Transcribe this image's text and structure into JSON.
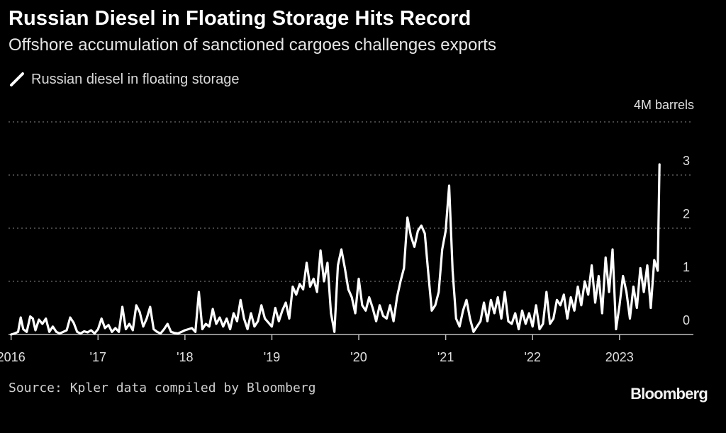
{
  "title": "Russian Diesel in Floating Storage Hits Record",
  "subtitle": "Offshore accumulation of sanctioned cargoes challenges exports",
  "legend": {
    "label": "Russian diesel in floating storage",
    "icon": "line-swatch-icon"
  },
  "source": "Source: Kpler data compiled by Bloomberg",
  "brand": "Bloomberg",
  "colors": {
    "background": "#000000",
    "line": "#ffffff",
    "grid": "#8a8a8a",
    "text": "#e0e0e0"
  },
  "chart_data": {
    "type": "line",
    "title": "Russian Diesel in Floating Storage Hits Record",
    "subtitle": "Offshore accumulation of sanctioned cargoes challenges exports",
    "unit_label": "4M barrels",
    "y_tick_labels": [
      "0",
      "1",
      "2",
      "3"
    ],
    "x_tick_labels": [
      "2016",
      "'17",
      "'18",
      "'19",
      "'20",
      "'21",
      "'22",
      "2023"
    ],
    "ylim": [
      0,
      4
    ],
    "xlim": [
      2015.97,
      2023.85
    ],
    "y_axis_position": "right",
    "grid": "horizontal dotted",
    "legend_position": "top-left",
    "series": [
      {
        "name": "Russian diesel in floating storage",
        "points": [
          [
            2016.0,
            0.0
          ],
          [
            2016.04,
            0.02
          ],
          [
            2016.08,
            0.05
          ],
          [
            2016.11,
            0.32
          ],
          [
            2016.14,
            0.1
          ],
          [
            2016.18,
            0.05
          ],
          [
            2016.22,
            0.34
          ],
          [
            2016.25,
            0.3
          ],
          [
            2016.28,
            0.08
          ],
          [
            2016.32,
            0.28
          ],
          [
            2016.36,
            0.2
          ],
          [
            2016.4,
            0.3
          ],
          [
            2016.44,
            0.05
          ],
          [
            2016.48,
            0.15
          ],
          [
            2016.52,
            0.05
          ],
          [
            2016.56,
            0.02
          ],
          [
            2016.6,
            0.05
          ],
          [
            2016.64,
            0.08
          ],
          [
            2016.68,
            0.32
          ],
          [
            2016.72,
            0.22
          ],
          [
            2016.76,
            0.05
          ],
          [
            2016.8,
            0.02
          ],
          [
            2016.84,
            0.06
          ],
          [
            2016.88,
            0.04
          ],
          [
            2016.92,
            0.08
          ],
          [
            2016.96,
            0.02
          ],
          [
            2017.0,
            0.1
          ],
          [
            2017.04,
            0.3
          ],
          [
            2017.08,
            0.12
          ],
          [
            2017.12,
            0.18
          ],
          [
            2017.16,
            0.05
          ],
          [
            2017.2,
            0.12
          ],
          [
            2017.24,
            0.05
          ],
          [
            2017.28,
            0.52
          ],
          [
            2017.32,
            0.1
          ],
          [
            2017.36,
            0.2
          ],
          [
            2017.4,
            0.08
          ],
          [
            2017.44,
            0.55
          ],
          [
            2017.48,
            0.42
          ],
          [
            2017.52,
            0.15
          ],
          [
            2017.56,
            0.3
          ],
          [
            2017.6,
            0.52
          ],
          [
            2017.64,
            0.1
          ],
          [
            2017.68,
            0.05
          ],
          [
            2017.72,
            0.02
          ],
          [
            2017.76,
            0.1
          ],
          [
            2017.8,
            0.2
          ],
          [
            2017.84,
            0.05
          ],
          [
            2017.88,
            0.03
          ],
          [
            2017.92,
            0.02
          ],
          [
            2017.96,
            0.05
          ],
          [
            2018.0,
            0.08
          ],
          [
            2018.04,
            0.1
          ],
          [
            2018.08,
            0.12
          ],
          [
            2018.12,
            0.05
          ],
          [
            2018.16,
            0.8
          ],
          [
            2018.2,
            0.1
          ],
          [
            2018.24,
            0.2
          ],
          [
            2018.28,
            0.15
          ],
          [
            2018.32,
            0.48
          ],
          [
            2018.36,
            0.2
          ],
          [
            2018.4,
            0.32
          ],
          [
            2018.44,
            0.15
          ],
          [
            2018.48,
            0.3
          ],
          [
            2018.52,
            0.1
          ],
          [
            2018.56,
            0.4
          ],
          [
            2018.6,
            0.25
          ],
          [
            2018.64,
            0.65
          ],
          [
            2018.68,
            0.3
          ],
          [
            2018.72,
            0.1
          ],
          [
            2018.76,
            0.4
          ],
          [
            2018.8,
            0.15
          ],
          [
            2018.84,
            0.25
          ],
          [
            2018.88,
            0.55
          ],
          [
            2018.92,
            0.3
          ],
          [
            2019.0,
            0.15
          ],
          [
            2019.04,
            0.5
          ],
          [
            2019.08,
            0.25
          ],
          [
            2019.12,
            0.45
          ],
          [
            2019.16,
            0.6
          ],
          [
            2019.2,
            0.3
          ],
          [
            2019.24,
            0.9
          ],
          [
            2019.28,
            0.75
          ],
          [
            2019.32,
            0.95
          ],
          [
            2019.36,
            0.85
          ],
          [
            2019.4,
            1.35
          ],
          [
            2019.44,
            0.9
          ],
          [
            2019.48,
            1.05
          ],
          [
            2019.52,
            0.8
          ],
          [
            2019.56,
            1.58
          ],
          [
            2019.6,
            1.0
          ],
          [
            2019.64,
            1.35
          ],
          [
            2019.68,
            0.4
          ],
          [
            2019.72,
            0.05
          ],
          [
            2019.76,
            1.3
          ],
          [
            2019.8,
            1.6
          ],
          [
            2019.84,
            1.25
          ],
          [
            2019.88,
            0.85
          ],
          [
            2019.92,
            0.7
          ],
          [
            2019.96,
            0.4
          ],
          [
            2020.0,
            1.05
          ],
          [
            2020.04,
            0.55
          ],
          [
            2020.08,
            0.45
          ],
          [
            2020.12,
            0.7
          ],
          [
            2020.16,
            0.5
          ],
          [
            2020.2,
            0.25
          ],
          [
            2020.24,
            0.55
          ],
          [
            2020.28,
            0.35
          ],
          [
            2020.32,
            0.3
          ],
          [
            2020.36,
            0.55
          ],
          [
            2020.4,
            0.25
          ],
          [
            2020.44,
            0.7
          ],
          [
            2020.48,
            1.0
          ],
          [
            2020.52,
            1.25
          ],
          [
            2020.56,
            2.2
          ],
          [
            2020.6,
            1.85
          ],
          [
            2020.64,
            1.65
          ],
          [
            2020.68,
            1.95
          ],
          [
            2020.72,
            2.05
          ],
          [
            2020.76,
            1.9
          ],
          [
            2020.8,
            1.15
          ],
          [
            2020.84,
            0.45
          ],
          [
            2020.88,
            0.55
          ],
          [
            2020.92,
            0.8
          ],
          [
            2020.96,
            1.6
          ],
          [
            2021.0,
            1.95
          ],
          [
            2021.04,
            2.8
          ],
          [
            2021.08,
            1.2
          ],
          [
            2021.12,
            0.3
          ],
          [
            2021.16,
            0.15
          ],
          [
            2021.2,
            0.45
          ],
          [
            2021.24,
            0.65
          ],
          [
            2021.28,
            0.3
          ],
          [
            2021.32,
            0.05
          ],
          [
            2021.36,
            0.15
          ],
          [
            2021.4,
            0.25
          ],
          [
            2021.44,
            0.6
          ],
          [
            2021.48,
            0.25
          ],
          [
            2021.52,
            0.65
          ],
          [
            2021.56,
            0.4
          ],
          [
            2021.6,
            0.7
          ],
          [
            2021.64,
            0.3
          ],
          [
            2021.68,
            0.8
          ],
          [
            2021.72,
            0.25
          ],
          [
            2021.76,
            0.2
          ],
          [
            2021.8,
            0.4
          ],
          [
            2021.84,
            0.1
          ],
          [
            2021.88,
            0.45
          ],
          [
            2021.92,
            0.2
          ],
          [
            2021.96,
            0.4
          ],
          [
            2022.0,
            0.15
          ],
          [
            2022.04,
            0.55
          ],
          [
            2022.08,
            0.1
          ],
          [
            2022.12,
            0.2
          ],
          [
            2022.16,
            0.8
          ],
          [
            2022.2,
            0.2
          ],
          [
            2022.24,
            0.3
          ],
          [
            2022.28,
            0.65
          ],
          [
            2022.32,
            0.55
          ],
          [
            2022.36,
            0.75
          ],
          [
            2022.4,
            0.3
          ],
          [
            2022.44,
            0.7
          ],
          [
            2022.48,
            0.45
          ],
          [
            2022.52,
            0.9
          ],
          [
            2022.56,
            0.55
          ],
          [
            2022.6,
            1.0
          ],
          [
            2022.64,
            0.75
          ],
          [
            2022.68,
            1.3
          ],
          [
            2022.72,
            0.6
          ],
          [
            2022.76,
            1.1
          ],
          [
            2022.8,
            0.4
          ],
          [
            2022.84,
            1.45
          ],
          [
            2022.88,
            0.8
          ],
          [
            2022.92,
            1.6
          ],
          [
            2022.96,
            0.1
          ],
          [
            2023.0,
            0.55
          ],
          [
            2023.04,
            1.1
          ],
          [
            2023.08,
            0.8
          ],
          [
            2023.12,
            0.3
          ],
          [
            2023.16,
            0.9
          ],
          [
            2023.2,
            0.5
          ],
          [
            2023.24,
            1.25
          ],
          [
            2023.28,
            0.8
          ],
          [
            2023.32,
            1.3
          ],
          [
            2023.36,
            0.5
          ],
          [
            2023.4,
            1.4
          ],
          [
            2023.44,
            1.2
          ],
          [
            2023.46,
            3.2
          ]
        ]
      }
    ]
  }
}
